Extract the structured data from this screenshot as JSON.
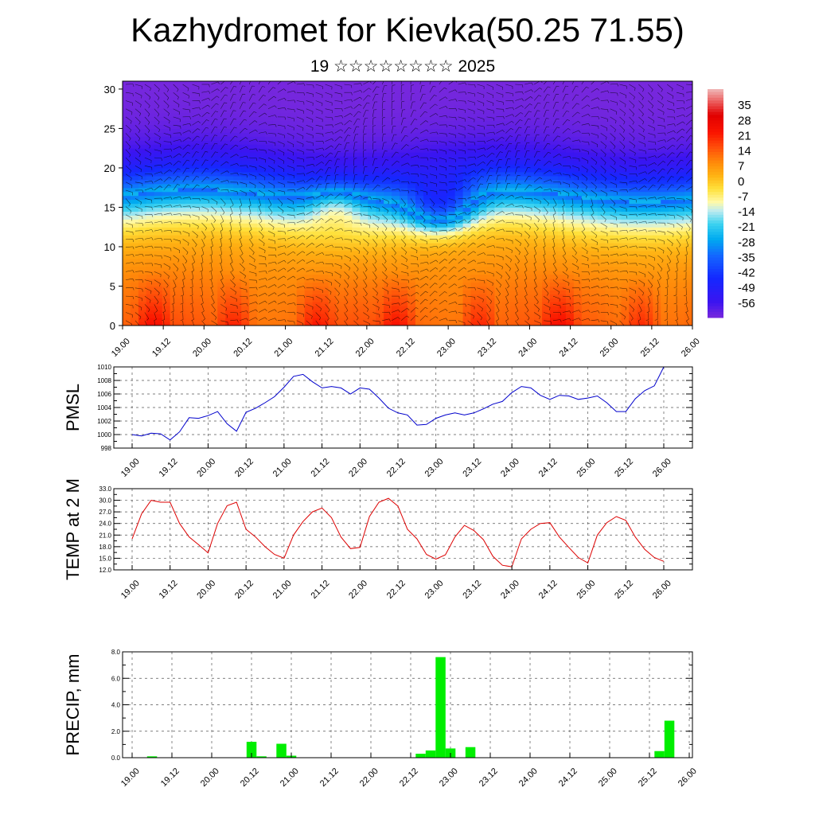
{
  "header": {
    "title": "Kazhydromet for Kievka(50.25 71.55)",
    "subtitle": "19 ☆☆☆☆☆☆☆☆ 2025"
  },
  "colors": {
    "pmsl_line": "#0000cc",
    "temp_line": "#dd0000",
    "precip_bar": "#00ee00",
    "grid": "#555555"
  },
  "chart_data": [
    {
      "type": "heatmap",
      "title": "",
      "xlabel": "",
      "ylabel": "",
      "ylim": [
        0,
        31
      ],
      "yticks": [
        "0",
        "5",
        "10",
        "15",
        "20",
        "25",
        "30"
      ],
      "x_tick_labels": [
        "19.00",
        "19.12",
        "20.00",
        "20.12",
        "21.00",
        "21.12",
        "22.00",
        "22.12",
        "23.00",
        "23.12",
        "24.00",
        "24.12",
        "25.00",
        "25.12",
        "26.00"
      ],
      "colorbar_labels": [
        "35",
        "28",
        "21",
        "14",
        "7",
        "0",
        "-7",
        "-14",
        "-21",
        "-28",
        "-35",
        "-42",
        "-49",
        "-56"
      ],
      "colorbar_range": [
        -63,
        42
      ],
      "overlay": "wind barbs",
      "colormap": "blue-cyan-yellow-orange-red",
      "grid": false
    },
    {
      "type": "line",
      "ylabel": "PMSL",
      "ylim": [
        998,
        1010
      ],
      "yticks": [
        "998",
        "1000",
        "1002",
        "1004",
        "1006",
        "1008",
        "1010"
      ],
      "x_tick_labels": [
        "19.00",
        "19.12",
        "20.00",
        "20.12",
        "21.00",
        "21.12",
        "22.00",
        "22.12",
        "23.00",
        "23.12",
        "24.00",
        "24.12",
        "25.00",
        "25.12",
        "26.00"
      ],
      "x_hours": [
        0,
        3,
        6,
        9,
        12,
        15,
        18,
        21,
        24,
        27,
        30,
        33,
        36,
        39,
        42,
        45,
        48,
        51,
        54,
        57,
        60,
        63,
        66,
        69,
        72,
        75,
        78,
        81,
        84,
        87,
        90,
        93,
        96,
        99,
        102,
        105,
        108,
        111,
        114,
        117,
        120,
        123,
        126,
        129,
        132,
        135,
        138,
        141,
        144,
        147,
        150,
        153,
        156,
        159,
        162,
        165,
        168
      ],
      "values": [
        1000.0,
        999.8,
        1000.2,
        1000.1,
        999.2,
        1000.4,
        1002.5,
        1002.4,
        1002.8,
        1003.4,
        1001.6,
        1000.5,
        1003.3,
        1003.9,
        1004.7,
        1005.6,
        1007.0,
        1008.6,
        1008.9,
        1007.8,
        1006.9,
        1007.1,
        1006.9,
        1006.0,
        1006.9,
        1006.7,
        1005.4,
        1003.9,
        1003.2,
        1002.9,
        1001.4,
        1001.5,
        1002.4,
        1002.9,
        1003.2,
        1002.9,
        1003.2,
        1003.8,
        1004.5,
        1004.9,
        1006.2,
        1007.1,
        1006.9,
        1005.8,
        1005.2,
        1005.8,
        1005.7,
        1005.2,
        1005.4,
        1005.7,
        1004.7,
        1003.4,
        1003.4,
        1005.3,
        1006.5,
        1007.2,
        1010.0
      ],
      "grid": true
    },
    {
      "type": "line",
      "ylabel": "TEMP at 2 M",
      "ylim": [
        12,
        33
      ],
      "yticks": [
        "12.0",
        "15.0",
        "18.0",
        "21.0",
        "24.0",
        "27.0",
        "30.0",
        "33.0"
      ],
      "x_tick_labels": [
        "19.00",
        "19.12",
        "20.00",
        "20.12",
        "21.00",
        "21.12",
        "22.00",
        "22.12",
        "23.00",
        "23.12",
        "24.00",
        "24.12",
        "25.00",
        "25.12",
        "26.00"
      ],
      "x_hours": [
        0,
        3,
        6,
        9,
        12,
        15,
        18,
        21,
        24,
        27,
        30,
        33,
        36,
        39,
        42,
        45,
        48,
        51,
        54,
        57,
        60,
        63,
        66,
        69,
        72,
        75,
        78,
        81,
        84,
        87,
        90,
        93,
        96,
        99,
        102,
        105,
        108,
        111,
        114,
        117,
        120,
        123,
        126,
        129,
        132,
        135,
        138,
        141,
        144,
        147,
        150,
        153,
        156,
        159,
        162,
        165,
        168
      ],
      "values": [
        20.0,
        26.5,
        30.0,
        29.5,
        29.5,
        24.0,
        20.5,
        18.5,
        16.4,
        24.0,
        28.6,
        29.5,
        22.5,
        20.5,
        18.0,
        16.0,
        15.0,
        21.0,
        24.5,
        27.0,
        28.0,
        25.5,
        20.5,
        17.5,
        17.8,
        25.8,
        29.5,
        30.5,
        28.5,
        22.5,
        20.0,
        16.0,
        14.8,
        15.9,
        20.5,
        23.5,
        22.2,
        19.8,
        15.5,
        13.2,
        12.8,
        20.0,
        22.5,
        24.0,
        24.2,
        20.5,
        17.8,
        15.2,
        13.8,
        21.0,
        24.2,
        25.8,
        24.8,
        20.5,
        17.3,
        15.2,
        14.2
      ],
      "grid": true
    },
    {
      "type": "bar",
      "ylabel": "PRECIP, mm",
      "ylim": [
        0,
        8
      ],
      "yticks": [
        "0.0",
        "2.0",
        "4.0",
        "6.0",
        "8.0"
      ],
      "x_tick_labels": [
        "19.00",
        "19.12",
        "20.00",
        "20.12",
        "21.00",
        "21.12",
        "22.00",
        "22.12",
        "23.00",
        "23.12",
        "24.00",
        "24.12",
        "25.00",
        "25.12",
        "26.00"
      ],
      "bar_hours": [
        6,
        36,
        39,
        45,
        48,
        87,
        90,
        93,
        96,
        102,
        159,
        162
      ],
      "values": [
        0.1,
        1.2,
        0.1,
        1.05,
        0.15,
        0.3,
        0.55,
        7.6,
        0.7,
        0.8,
        0.5,
        2.8
      ],
      "grid": true
    }
  ]
}
